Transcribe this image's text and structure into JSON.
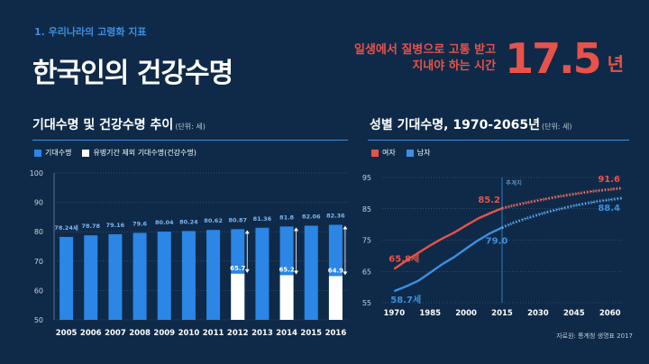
{
  "header": {
    "subtitle": "1. 우리나라의 고령화 지표",
    "title": "한국인의 건강수명",
    "callout_line1": "일생에서 질병으로 고통 받고",
    "callout_line2": "지내야 하는 시간",
    "callout_number": "17.5",
    "callout_unit": "년"
  },
  "colors": {
    "background": "#0e2a48",
    "accent_blue": "#3e8fe0",
    "bar_blue": "#2b86e5",
    "red": "#e8524a",
    "white": "#ffffff"
  },
  "left_chart": {
    "title": "기대수명 및 건강수명 추이",
    "unit": "(단위: 세)",
    "legend": [
      "기대수명",
      "유병기간 제외 기대수명(건강수명)"
    ]
  },
  "right_chart": {
    "title": "성별 기대수명, 1970-2065년",
    "unit": "(단위: 세)",
    "legend": [
      "여자",
      "남자"
    ],
    "projection_label": "추계치"
  },
  "source": "자료원: 통계청 생명표 2017",
  "chart_data": [
    {
      "type": "bar",
      "categories": [
        "2005",
        "2006",
        "2007",
        "2008",
        "2009",
        "2010",
        "2011",
        "2012",
        "2013",
        "2014",
        "2015",
        "2016"
      ],
      "ylim": [
        50,
        100
      ],
      "yticks": [
        50,
        60,
        70,
        80,
        90,
        100
      ],
      "series": [
        {
          "name": "기대수명",
          "values": [
            78.24,
            78.78,
            79.16,
            79.6,
            80.04,
            80.24,
            80.62,
            80.87,
            81.36,
            81.8,
            82.06,
            82.36
          ],
          "labels": [
            "78.24세",
            "78.78",
            "79.16",
            "79.6",
            "80.04",
            "80.24",
            "80.62",
            "80.87",
            "81.36",
            "81.8",
            "82.06",
            "82.36"
          ]
        },
        {
          "name": "유병기간 제외 기대수명(건강수명)",
          "values": [
            null,
            null,
            null,
            null,
            null,
            null,
            null,
            65.7,
            null,
            65.2,
            null,
            64.9
          ],
          "labels": [
            "",
            "",
            "",
            "",
            "",
            "",
            "",
            "65.7",
            "",
            "65.2",
            "",
            "64.9"
          ]
        }
      ]
    },
    {
      "type": "line",
      "xlim": [
        1965,
        2065
      ],
      "ylim": [
        55,
        95
      ],
      "xticks": [
        1970,
        1985,
        2000,
        2015,
        2030,
        2045,
        2060
      ],
      "yticks": [
        55,
        65,
        75,
        85,
        95
      ],
      "projection_start": 2015,
      "series": [
        {
          "name": "여자",
          "x": [
            1970,
            1975,
            1980,
            1985,
            1990,
            1995,
            2000,
            2005,
            2010,
            2015,
            2020,
            2025,
            2030,
            2035,
            2040,
            2045,
            2050,
            2055,
            2060,
            2065
          ],
          "y": [
            65.8,
            68.4,
            70.9,
            73.3,
            75.5,
            77.4,
            79.7,
            81.9,
            83.6,
            85.2,
            86.1,
            86.9,
            87.7,
            88.4,
            89.1,
            89.7,
            90.3,
            90.8,
            91.2,
            91.6
          ],
          "annotations": [
            {
              "x": 1970,
              "label": "65.8세"
            },
            {
              "x": 2015,
              "label": "85.2"
            },
            {
              "x": 2065,
              "label": "91.6"
            }
          ]
        },
        {
          "name": "남자",
          "x": [
            1970,
            1975,
            1980,
            1985,
            1990,
            1995,
            2000,
            2005,
            2010,
            2015,
            2020,
            2025,
            2030,
            2035,
            2040,
            2045,
            2050,
            2055,
            2060,
            2065
          ],
          "y": [
            58.7,
            60.2,
            62.0,
            64.6,
            67.3,
            69.6,
            72.3,
            74.9,
            77.2,
            79.0,
            80.6,
            81.9,
            83.1,
            84.2,
            85.1,
            86.0,
            86.7,
            87.4,
            87.9,
            88.4
          ],
          "annotations": [
            {
              "x": 1970,
              "label": "58.7세"
            },
            {
              "x": 2015,
              "label": "79.0"
            },
            {
              "x": 2065,
              "label": "88.4"
            }
          ]
        }
      ]
    }
  ]
}
